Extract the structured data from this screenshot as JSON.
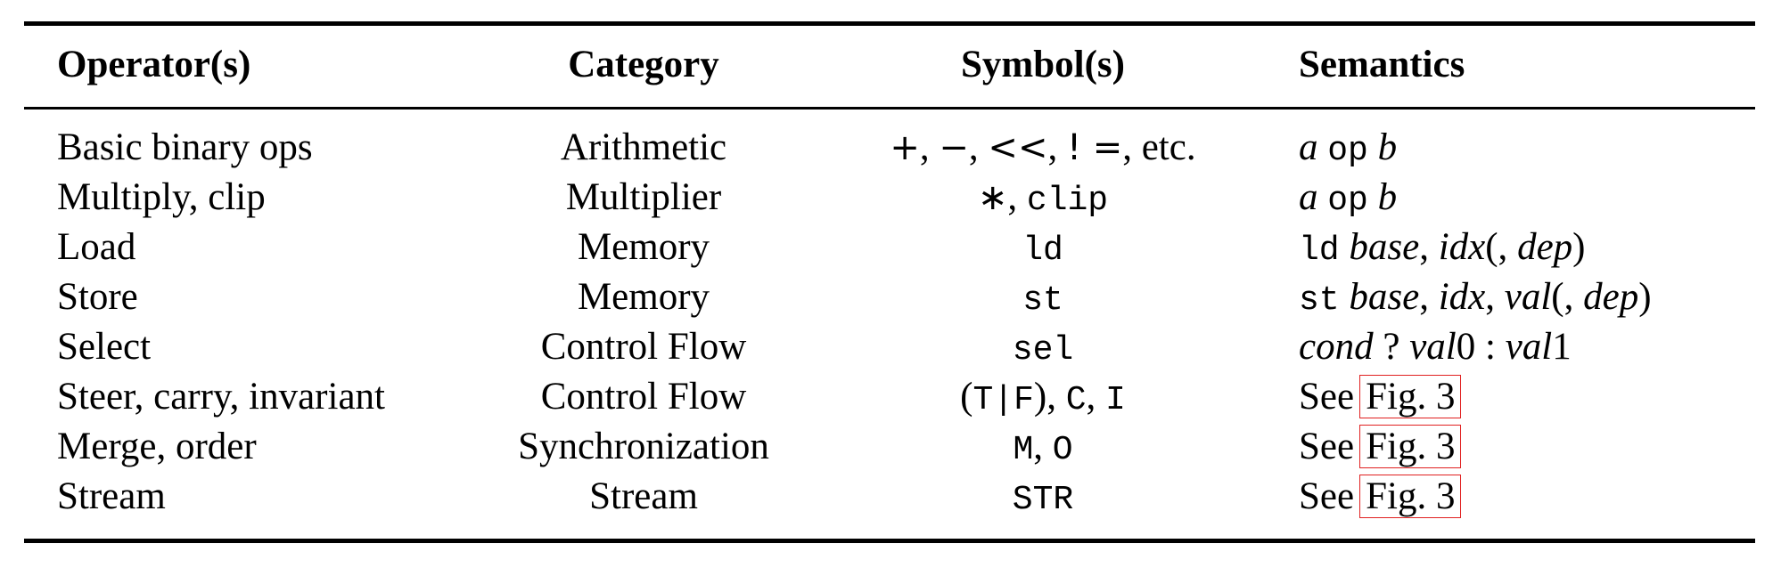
{
  "header": {
    "operators": "Operator(s)",
    "category": "Category",
    "symbols": "Symbol(s)",
    "semantics": "Semantics"
  },
  "rows": [
    {
      "operator": "Basic binary ops",
      "category": "Arithmetic",
      "symbols": {
        "a": "+",
        "b": "−",
        "c": "<<",
        "d": "! =",
        "etc": "etc."
      },
      "semantics": {
        "a": "a",
        "op": "op",
        "b": "b"
      }
    },
    {
      "operator": "Multiply, clip",
      "category": "Multiplier",
      "symbols": {
        "a": "∗",
        "b": "clip"
      },
      "semantics": {
        "a": "a",
        "op": "op",
        "b": "b"
      }
    },
    {
      "operator": "Load",
      "category": "Memory",
      "symbols": {
        "a": "ld"
      },
      "semantics": {
        "op": "ld",
        "base": "base",
        "idx": "idx",
        "dep": "dep"
      }
    },
    {
      "operator": "Store",
      "category": "Memory",
      "symbols": {
        "a": "st"
      },
      "semantics": {
        "op": "st",
        "base": "base",
        "idx": "idx",
        "val": "val",
        "dep": "dep"
      }
    },
    {
      "operator": "Select",
      "category": "Control Flow",
      "symbols": {
        "a": "sel"
      },
      "semantics": {
        "cond": "cond",
        "val0": "val",
        "zero": "0",
        "val1": "val",
        "one": "1"
      }
    },
    {
      "operator": "Steer, carry, invariant",
      "category": "Control Flow",
      "symbols": {
        "t": "T",
        "bar": "|",
        "f": "F",
        "c": "C",
        "i": "I"
      },
      "semantics": {
        "see": "See",
        "ref": "Fig. 3"
      }
    },
    {
      "operator": "Merge, order",
      "category": "Synchronization",
      "symbols": {
        "m": "M",
        "o": "O"
      },
      "semantics": {
        "see": "See",
        "ref": "Fig. 3"
      }
    },
    {
      "operator": "Stream",
      "category": "Stream",
      "symbols": {
        "a": "STR"
      },
      "semantics": {
        "see": "See",
        "ref": "Fig. 3"
      }
    }
  ]
}
